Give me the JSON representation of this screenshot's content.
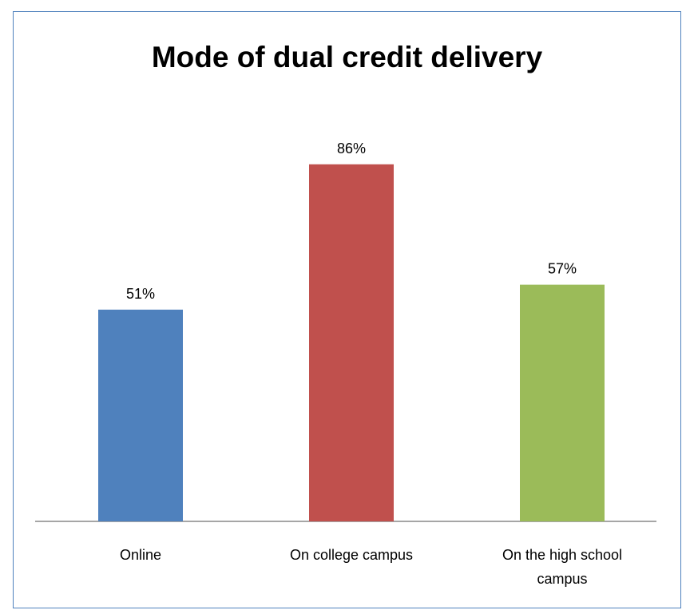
{
  "chart_data": {
    "type": "bar",
    "title": "Mode of dual credit delivery",
    "categories": [
      "Online",
      "On college campus",
      "On the high school campus"
    ],
    "category_lines": [
      [
        "Online"
      ],
      [
        "On college campus"
      ],
      [
        "On the high school",
        "campus"
      ]
    ],
    "values": [
      51,
      86,
      57
    ],
    "data_labels": [
      "51%",
      "86%",
      "57%"
    ],
    "colors": [
      "#4f81bd",
      "#c0504d",
      "#9bbb59"
    ],
    "ylim": [
      0,
      100
    ],
    "grid": false,
    "legend": "none"
  }
}
